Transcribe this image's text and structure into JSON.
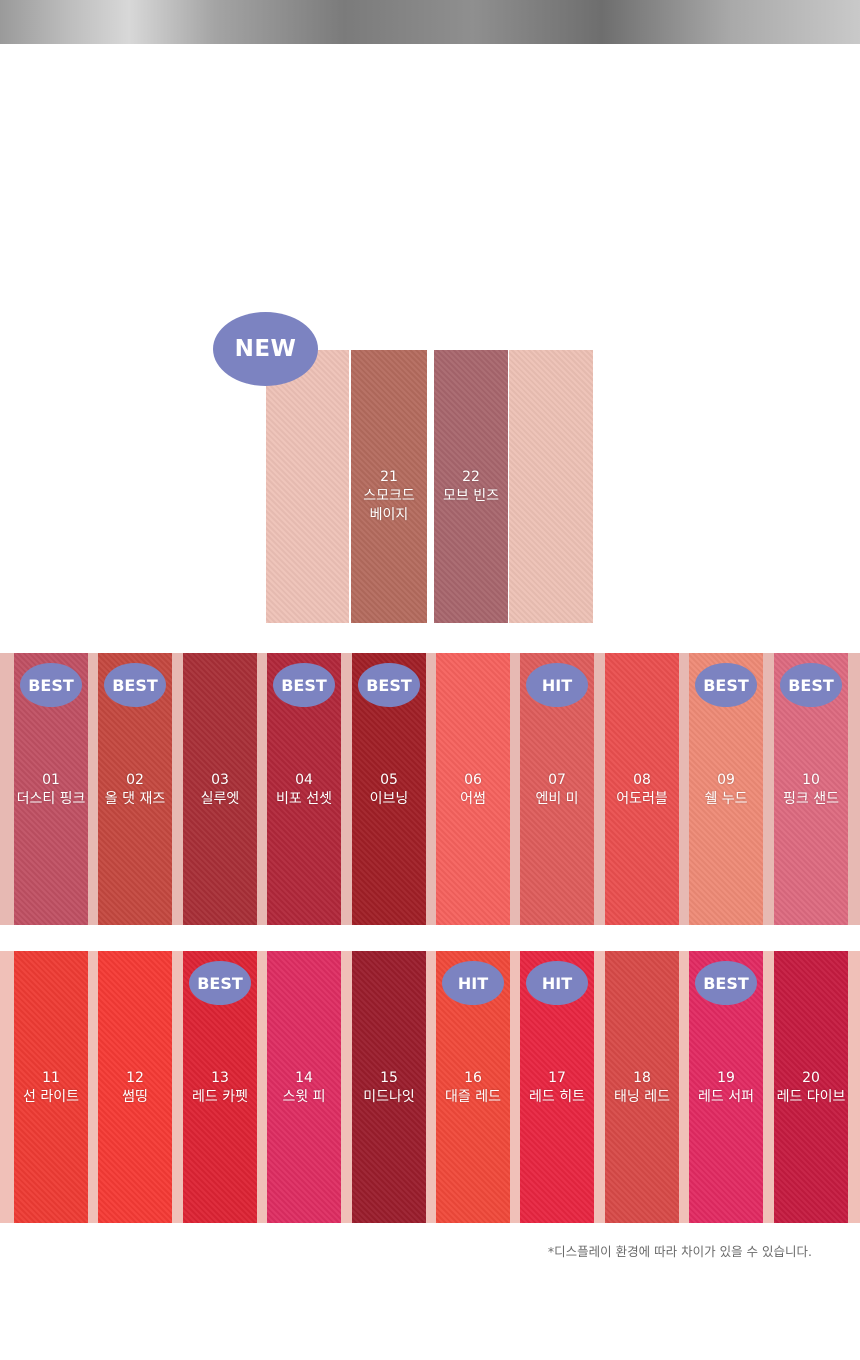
{
  "new_badge": "NEW",
  "new_swatches": [
    {
      "num": "",
      "name": "",
      "color": "#eec2b7"
    },
    {
      "num": "21",
      "name": "스모크드 베이지",
      "color": "#b46b5e"
    },
    {
      "num": "22",
      "name": "모브 빈즈",
      "color": "#a8666d"
    },
    {
      "num": "",
      "name": "",
      "color": "#edc1b5"
    }
  ],
  "row1": [
    {
      "num": "01",
      "name": "더스티 핑크",
      "badge": "BEST",
      "color": "#c05063"
    },
    {
      "num": "02",
      "name": "올 댓 재즈",
      "badge": "BEST",
      "color": "#c4483f"
    },
    {
      "num": "03",
      "name": "실루엣",
      "badge": "",
      "color": "#a82f37"
    },
    {
      "num": "04",
      "name": "비포 선셋",
      "badge": "BEST",
      "color": "#b1273a"
    },
    {
      "num": "05",
      "name": "이브닝",
      "badge": "BEST",
      "color": "#a01f26"
    },
    {
      "num": "06",
      "name": "어썸",
      "badge": "",
      "color": "#f6625e"
    },
    {
      "num": "07",
      "name": "엔비 미",
      "badge": "HIT",
      "color": "#de5d5c"
    },
    {
      "num": "08",
      "name": "어도러블",
      "badge": "",
      "color": "#ea4f4f"
    },
    {
      "num": "09",
      "name": "쉘 누드",
      "badge": "BEST",
      "color": "#ee8a76"
    },
    {
      "num": "10",
      "name": "핑크 샌드",
      "badge": "BEST",
      "color": "#dd6a80"
    }
  ],
  "row2": [
    {
      "num": "11",
      "name": "선 라이트",
      "badge": "",
      "color": "#ee3b34"
    },
    {
      "num": "12",
      "name": "썸띵",
      "badge": "",
      "color": "#f53a35"
    },
    {
      "num": "13",
      "name": "레드 카펫",
      "badge": "BEST",
      "color": "#dd2334"
    },
    {
      "num": "14",
      "name": "스윗 피",
      "badge": "",
      "color": "#de2d62"
    },
    {
      "num": "15",
      "name": "미드나잇",
      "badge": "",
      "color": "#9a1d2c"
    },
    {
      "num": "16",
      "name": "대즐 레드",
      "badge": "HIT",
      "color": "#f0493a"
    },
    {
      "num": "17",
      "name": "레드 히트",
      "badge": "HIT",
      "color": "#e82541"
    },
    {
      "num": "18",
      "name": "태닝 레드",
      "badge": "",
      "color": "#d74a48"
    },
    {
      "num": "19",
      "name": "레드 서퍼",
      "badge": "BEST",
      "color": "#e22a62"
    },
    {
      "num": "20",
      "name": "레드 다이브",
      "badge": "",
      "color": "#c51b40"
    }
  ],
  "footnote": "*디스플레이 환경에 따라 차이가 있을 수 있습니다."
}
